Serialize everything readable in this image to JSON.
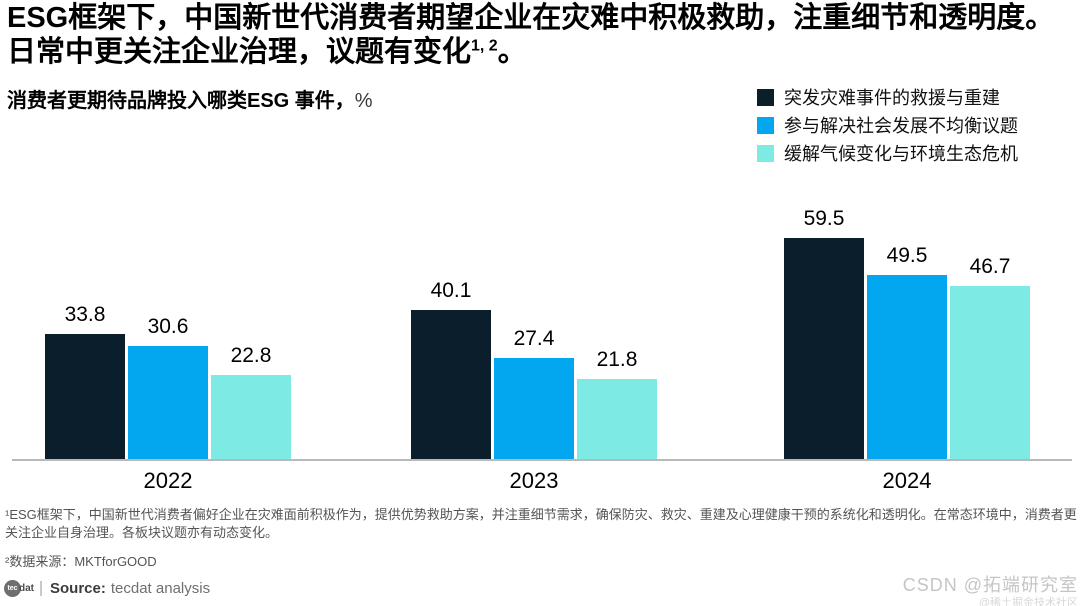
{
  "headline": {
    "text_before_sup": "ESG框架下，中国新世代消费者期望企业在灾难中积极救助，注重细节和透明度。日常中更关注企业治理，议题有变化",
    "superscript": "1, 2",
    "text_after_sup": "。"
  },
  "chart": {
    "title": "消费者更期待品牌投入哪类ESG 事件，",
    "unit": "%"
  },
  "chart_data": {
    "type": "bar",
    "title": "消费者更期待品牌投入哪类ESG 事件，%",
    "categories": [
      "2022",
      "2023",
      "2024"
    ],
    "series": [
      {
        "name": "突发灾难事件的救援与重建",
        "color": "#0a1e2c",
        "values": [
          33.8,
          40.1,
          59.5
        ]
      },
      {
        "name": "参与解决社会发展不均衡议题",
        "color": "#03a7f0",
        "values": [
          30.6,
          27.4,
          49.5
        ]
      },
      {
        "name": "缓解气候变化与环境生态危机",
        "color": "#7debe3",
        "values": [
          22.8,
          21.8,
          46.7
        ]
      }
    ],
    "xlabel": "",
    "ylabel": "%",
    "ylim": [
      0,
      72
    ],
    "grid": false,
    "value_labels": true,
    "legend_position": "top-right",
    "axis_line_color": "#b9b9b9"
  },
  "footnotes": {
    "note1": "¹ESG框架下，中国新世代消费者偏好企业在灾难面前积极作为，提供优势救助方案，并注重细节需求，确保防灾、救灾、重建及心理健康干预的系统化和透明化。在常态环境中，消费者更关注企业自身治理。各板块议题亦有动态变化。",
    "note2": "²数据来源：MKTforGOOD"
  },
  "source": {
    "logo_circle_text": "tec",
    "logo_rest_text": "dat",
    "label": "Source:",
    "text": "tecdat analysis"
  },
  "watermark": {
    "main": "CSDN @拓端研究室",
    "sub": "@稀土掘金技术社区"
  }
}
